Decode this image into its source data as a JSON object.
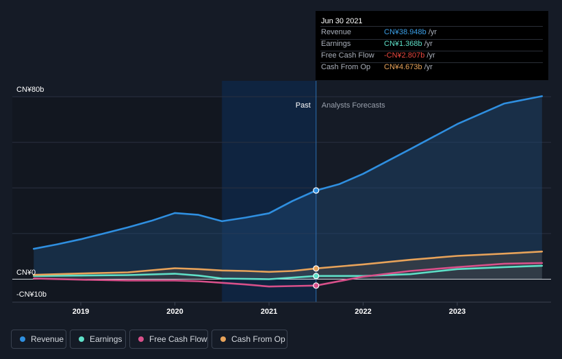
{
  "tooltip": {
    "date": "Jun 30 2021",
    "rows": [
      {
        "label": "Revenue",
        "value": "CN¥38.948b",
        "unit": "/yr",
        "color": "#3a9ee6"
      },
      {
        "label": "Earnings",
        "value": "CN¥1.368b",
        "unit": "/yr",
        "color": "#5fe0c8"
      },
      {
        "label": "Free Cash Flow",
        "value": "-CN¥2.807b",
        "unit": "/yr",
        "color": "#e8473f"
      },
      {
        "label": "Cash From Op",
        "value": "CN¥4.673b",
        "unit": "/yr",
        "color": "#e8a35a"
      }
    ]
  },
  "legend": [
    {
      "label": "Revenue",
      "color": "#2f8fe0"
    },
    {
      "label": "Earnings",
      "color": "#5fe0c8"
    },
    {
      "label": "Free Cash Flow",
      "color": "#d8508a"
    },
    {
      "label": "Cash From Op",
      "color": "#e8a35a"
    }
  ],
  "chart_data": {
    "type": "line",
    "y_top_label": "CN¥80b",
    "y_zero_label": "CN¥0",
    "y_bottom_label": "-CN¥10b",
    "ylim": [
      -10,
      80
    ],
    "x_ticks": [
      "2019",
      "2020",
      "2021",
      "2022",
      "2023"
    ],
    "past_label": "Past",
    "forecast_label": "Analysts Forecasts",
    "divider_x": 2021.5,
    "highlight_start_x": 2020.5,
    "series": [
      {
        "name": "Revenue",
        "color": "#2f8fe0",
        "x": [
          2018.5,
          2018.75,
          2019.0,
          2019.25,
          2019.5,
          2019.75,
          2020.0,
          2020.25,
          2020.5,
          2020.75,
          2021.0,
          2021.25,
          2021.5,
          2021.75,
          2022.0,
          2022.5,
          2023.0,
          2023.5,
          2023.9
        ],
        "y": [
          13.3,
          15.3,
          17.5,
          20.1,
          22.7,
          25.6,
          29.0,
          28.2,
          25.4,
          27.0,
          28.9,
          34.3,
          38.9,
          41.7,
          46.2,
          57.0,
          68.0,
          77.0,
          80.2
        ]
      },
      {
        "name": "Earnings",
        "color": "#5fe0c8",
        "x": [
          2018.5,
          2019.0,
          2019.5,
          2020.0,
          2020.25,
          2020.5,
          2021.0,
          2021.25,
          2021.5,
          2022.0,
          2022.5,
          2023.0,
          2023.5,
          2023.9
        ],
        "y": [
          1.4,
          1.6,
          1.8,
          2.4,
          1.6,
          0.3,
          0.0,
          0.7,
          1.4,
          1.4,
          2.2,
          4.4,
          5.3,
          5.9
        ]
      },
      {
        "name": "Free Cash Flow",
        "color": "#d8508a",
        "x": [
          2018.5,
          2019.0,
          2019.5,
          2020.0,
          2020.25,
          2020.5,
          2020.75,
          2021.0,
          2021.25,
          2021.5,
          2022.0,
          2022.5,
          2023.0,
          2023.5,
          2023.9
        ],
        "y": [
          0.3,
          -0.2,
          -0.6,
          -0.6,
          -0.9,
          -1.6,
          -2.3,
          -3.2,
          -3.0,
          -2.8,
          1.1,
          3.6,
          5.3,
          6.8,
          7.1
        ]
      },
      {
        "name": "Cash From Op",
        "color": "#e8a35a",
        "x": [
          2018.5,
          2019.0,
          2019.5,
          2020.0,
          2020.25,
          2020.5,
          2020.75,
          2021.0,
          2021.25,
          2021.5,
          2022.0,
          2022.5,
          2023.0,
          2023.5,
          2023.9
        ],
        "y": [
          1.9,
          2.5,
          3.0,
          4.8,
          4.4,
          3.8,
          3.6,
          3.2,
          3.6,
          4.7,
          6.5,
          8.5,
          10.2,
          11.2,
          12.1
        ]
      }
    ]
  }
}
